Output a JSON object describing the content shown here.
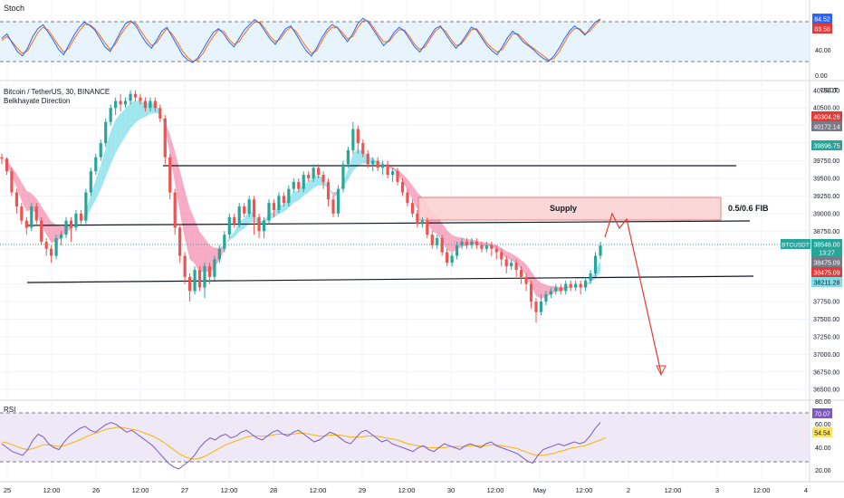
{
  "colors": {
    "up": "#26a69a",
    "down": "#ef5350",
    "grid": "#f0f3fa",
    "stoch_k": "#2962ff",
    "stoch_d": "#ff6d00",
    "rsi": "#7e57c2",
    "rsi_ma": "#f7b500",
    "band_fill": "#e3f2fd",
    "rsi_band": "#ede7f6",
    "cloud_bull": "#80deea",
    "cloud_bear": "#f48fb1",
    "supply_fill": "#fbd3d3",
    "supply_stroke": "#e57373",
    "projection": "#e53935",
    "sr_line": "#131722"
  },
  "stoch": {
    "title": "Stoch",
    "k_value": "84.52",
    "d_value": "83.58",
    "tick_80": "80.00",
    "tick_40": "40.00",
    "tick_0": "0.00"
  },
  "main": {
    "symbol_line": "Bitcoin / TetherUS, 30, BINANCE",
    "indicator_line": "Belkhayate Direction",
    "supply_label": "Supply",
    "fib_label": "0.5/0.6 FIB",
    "price_ticks": [
      "40750.00",
      "40500.00",
      "40250.00",
      "40000.00",
      "39750.00",
      "39500.00",
      "39250.00",
      "39000.00",
      "38750.00",
      "38500.00",
      "38250.00",
      "38000.00",
      "37750.00",
      "37500.00",
      "37250.00",
      "37000.00",
      "36750.00",
      "36500.00"
    ],
    "currency": "USDT",
    "badge_top1": "40304.26",
    "badge_top2": "40172.14",
    "badge_top3": "39896.75",
    "symbol_badge": "BTCUSDT",
    "last_price": "38546.00",
    "countdown": "13:27",
    "badge_low1": "38475.09",
    "badge_low2": "38475.09",
    "badge_low3": "38211.28"
  },
  "rsi": {
    "title": "RSI",
    "value": "70.07",
    "ma_value": "54.54",
    "tick_80": "80.00",
    "tick_60": "60.00",
    "tick_40": "40.00",
    "tick_20": "20.00"
  },
  "x_axis": {
    "labels": [
      "25",
      "12:00",
      "26",
      "12:00",
      "27",
      "12:00",
      "28",
      "12:00",
      "29",
      "12:00",
      "30",
      "12:00",
      "May",
      "12:00",
      "2",
      "12:00",
      "3",
      "12:00",
      "4"
    ]
  },
  "chart_data": {
    "type": "candlestick",
    "interval": "30",
    "ylim": [
      36400,
      40850
    ],
    "candles": [
      [
        39800,
        39780,
        39850,
        39700
      ],
      [
        39780,
        39600,
        39800,
        39550
      ],
      [
        39600,
        39300,
        39650,
        39250
      ],
      [
        39300,
        39100,
        39350,
        39000
      ],
      [
        39100,
        38900,
        39150,
        38850
      ],
      [
        38900,
        38800,
        38950,
        38700
      ],
      [
        38800,
        39100,
        39150,
        38750
      ],
      [
        39100,
        38900,
        39150,
        38850
      ],
      [
        38900,
        38600,
        38950,
        38550
      ],
      [
        38600,
        38500,
        38650,
        38400
      ],
      [
        38500,
        38400,
        38550,
        38300
      ],
      [
        38400,
        38650,
        38700,
        38350
      ],
      [
        38650,
        38700,
        38750,
        38550
      ],
      [
        38700,
        38900,
        38950,
        38650
      ],
      [
        38900,
        38800,
        38950,
        38600
      ],
      [
        38800,
        39000,
        39050,
        38750
      ],
      [
        39000,
        38900,
        39050,
        38850
      ],
      [
        38900,
        39300,
        39350,
        38850
      ],
      [
        39300,
        39600,
        39650,
        39250
      ],
      [
        39600,
        39800,
        39850,
        39550
      ],
      [
        39800,
        40000,
        40050,
        39750
      ],
      [
        40000,
        40300,
        40350,
        39950
      ],
      [
        40300,
        40500,
        40550,
        40250
      ],
      [
        40500,
        40600,
        40650,
        40400
      ],
      [
        40600,
        40550,
        40700,
        40450
      ],
      [
        40550,
        40600,
        40650,
        40500
      ],
      [
        40600,
        40700,
        40750,
        40550
      ],
      [
        40700,
        40650,
        40750,
        40600
      ],
      [
        40650,
        40600,
        40700,
        40550
      ],
      [
        40600,
        40500,
        40650,
        40450
      ],
      [
        40500,
        40600,
        40650,
        40450
      ],
      [
        40600,
        40500,
        40650,
        40450
      ],
      [
        40500,
        40350,
        40550,
        40300
      ],
      [
        40350,
        39800,
        40400,
        39700
      ],
      [
        39800,
        39300,
        39850,
        39200
      ],
      [
        39300,
        38800,
        39350,
        38700
      ],
      [
        38800,
        38400,
        38850,
        38300
      ],
      [
        38400,
        38100,
        38450,
        38000
      ],
      [
        38100,
        37900,
        38150,
        37750
      ],
      [
        37900,
        38200,
        38250,
        37850
      ],
      [
        38200,
        37950,
        38250,
        37900
      ],
      [
        37950,
        38250,
        38300,
        37800
      ],
      [
        38250,
        38100,
        38300,
        38000
      ],
      [
        38100,
        38350,
        38400,
        38050
      ],
      [
        38350,
        38500,
        38550,
        38300
      ],
      [
        38500,
        38700,
        38750,
        38450
      ],
      [
        38700,
        38950,
        39000,
        38650
      ],
      [
        38950,
        38850,
        39000,
        38800
      ],
      [
        38850,
        39100,
        39150,
        38800
      ],
      [
        39100,
        39000,
        39150,
        38950
      ],
      [
        39000,
        39200,
        39250,
        38950
      ],
      [
        39200,
        38950,
        39250,
        38700
      ],
      [
        38950,
        38750,
        39000,
        38650
      ],
      [
        38750,
        38900,
        38950,
        38650
      ],
      [
        38900,
        39150,
        39200,
        38850
      ],
      [
        39150,
        39050,
        39200,
        38950
      ],
      [
        39050,
        39250,
        39300,
        39000
      ],
      [
        39250,
        39150,
        39300,
        39100
      ],
      [
        39150,
        39350,
        39400,
        39100
      ],
      [
        39350,
        39450,
        39500,
        39300
      ],
      [
        39450,
        39350,
        39500,
        39300
      ],
      [
        39350,
        39550,
        39600,
        39300
      ],
      [
        39550,
        39500,
        39600,
        39450
      ],
      [
        39500,
        39650,
        39700,
        39450
      ],
      [
        39650,
        39550,
        39700,
        39500
      ],
      [
        39550,
        39450,
        39600,
        39350
      ],
      [
        39450,
        39200,
        39500,
        39100
      ],
      [
        39200,
        39000,
        39250,
        38950
      ],
      [
        39000,
        39350,
        39400,
        38950
      ],
      [
        39350,
        39700,
        39750,
        39300
      ],
      [
        39700,
        39900,
        39950,
        39650
      ],
      [
        39900,
        40200,
        40300,
        39850
      ],
      [
        40200,
        40000,
        40250,
        39850
      ],
      [
        40000,
        39850,
        40050,
        39800
      ],
      [
        39850,
        39700,
        39900,
        39650
      ],
      [
        39700,
        39750,
        39800,
        39600
      ],
      [
        39750,
        39650,
        39800,
        39600
      ],
      [
        39650,
        39700,
        39750,
        39550
      ],
      [
        39700,
        39550,
        39750,
        39500
      ],
      [
        39550,
        39600,
        39650,
        39450
      ],
      [
        39600,
        39450,
        39650,
        39400
      ],
      [
        39450,
        39300,
        39500,
        39250
      ],
      [
        39300,
        39150,
        39350,
        39100
      ],
      [
        39150,
        39000,
        39200,
        38950
      ],
      [
        39000,
        38850,
        39050,
        38800
      ],
      [
        38850,
        38900,
        38950,
        38800
      ],
      [
        38900,
        38700,
        38950,
        38650
      ],
      [
        38700,
        38550,
        38750,
        38500
      ],
      [
        38550,
        38650,
        38700,
        38500
      ],
      [
        38650,
        38450,
        38700,
        38400
      ],
      [
        38450,
        38300,
        38500,
        38250
      ],
      [
        38300,
        38400,
        38450,
        38250
      ],
      [
        38400,
        38550,
        38600,
        38350
      ],
      [
        38550,
        38600,
        38650,
        38500
      ],
      [
        38600,
        38550,
        38650,
        38500
      ],
      [
        38550,
        38600,
        38650,
        38500
      ],
      [
        38600,
        38550,
        38650,
        38500
      ],
      [
        38550,
        38500,
        38600,
        38450
      ],
      [
        38500,
        38550,
        38600,
        38450
      ],
      [
        38550,
        38500,
        38600,
        38400
      ],
      [
        38500,
        38450,
        38550,
        38350
      ],
      [
        38450,
        38350,
        38500,
        38250
      ],
      [
        38350,
        38250,
        38400,
        38150
      ],
      [
        38250,
        38300,
        38350,
        38200
      ],
      [
        38300,
        38200,
        38350,
        38100
      ],
      [
        38200,
        38100,
        38250,
        38000
      ],
      [
        38100,
        38000,
        38150,
        37900
      ],
      [
        38000,
        37750,
        38050,
        37650
      ],
      [
        37750,
        37600,
        37800,
        37450
      ],
      [
        37600,
        37750,
        37850,
        37550
      ],
      [
        37750,
        37850,
        37900,
        37700
      ],
      [
        37850,
        37900,
        37950,
        37800
      ],
      [
        37900,
        37950,
        38000,
        37850
      ],
      [
        37950,
        37900,
        38000,
        37850
      ],
      [
        37900,
        38000,
        38050,
        37850
      ],
      [
        38000,
        37950,
        38050,
        37900
      ],
      [
        37950,
        38000,
        38050,
        37900
      ],
      [
        38000,
        37950,
        38050,
        37850
      ],
      [
        37950,
        38050,
        38100,
        37900
      ],
      [
        38050,
        38150,
        38200,
        38000
      ],
      [
        38150,
        38400,
        38450,
        38100
      ],
      [
        38400,
        38546,
        38600,
        38350
      ]
    ],
    "levels": [
      39620,
      38860,
      38280
    ],
    "supply_zone": [
      38900,
      39180
    ],
    "stoch_k": [
      55,
      62,
      48,
      35,
      28,
      40,
      58,
      70,
      76,
      64,
      52,
      38,
      30,
      45,
      60,
      72,
      80,
      75,
      68,
      55,
      42,
      35,
      50,
      65,
      78,
      82,
      74,
      60,
      48,
      40,
      52,
      66,
      72,
      58,
      44,
      30,
      22,
      18,
      25,
      38,
      52,
      64,
      70,
      62,
      50,
      42,
      55,
      68,
      76,
      84,
      78,
      66,
      54,
      46,
      58,
      70,
      74,
      62,
      48,
      36,
      28,
      40,
      56,
      68,
      76,
      72,
      60,
      50,
      62,
      78,
      86,
      80,
      68,
      56,
      44,
      52,
      64,
      72,
      66,
      54,
      42,
      34,
      46,
      58,
      70,
      74,
      62,
      50,
      40,
      48,
      60,
      72,
      68,
      56,
      44,
      36,
      30,
      42,
      56,
      66,
      60,
      50,
      44,
      38,
      30,
      24,
      20,
      28,
      40,
      54,
      66,
      74,
      68,
      60,
      70,
      80,
      84.52
    ],
    "stoch_d": [
      52,
      58,
      50,
      40,
      32,
      36,
      50,
      64,
      72,
      68,
      56,
      44,
      34,
      40,
      54,
      66,
      76,
      76,
      70,
      60,
      48,
      38,
      46,
      60,
      72,
      80,
      78,
      66,
      54,
      44,
      48,
      60,
      70,
      62,
      50,
      36,
      26,
      20,
      22,
      32,
      46,
      58,
      68,
      66,
      54,
      46,
      50,
      62,
      72,
      80,
      80,
      70,
      58,
      50,
      54,
      66,
      72,
      66,
      54,
      42,
      32,
      36,
      50,
      64,
      72,
      72,
      64,
      54,
      58,
      72,
      82,
      82,
      72,
      60,
      50,
      50,
      60,
      68,
      68,
      58,
      46,
      38,
      42,
      54,
      66,
      72,
      66,
      54,
      44,
      46,
      56,
      68,
      70,
      60,
      48,
      40,
      34,
      38,
      50,
      62,
      62,
      54,
      46,
      40,
      34,
      28,
      22,
      24,
      34,
      48,
      62,
      70,
      70,
      62,
      66,
      76,
      83.58
    ],
    "rsi": [
      48,
      44,
      40,
      38,
      36,
      42,
      52,
      58,
      55,
      48,
      44,
      42,
      50,
      56,
      60,
      64,
      66,
      62,
      60,
      64,
      68,
      70,
      68,
      64,
      60,
      62,
      58,
      54,
      50,
      46,
      40,
      34,
      28,
      24,
      22,
      26,
      30,
      36,
      44,
      50,
      54,
      52,
      56,
      58,
      54,
      56,
      60,
      62,
      58,
      54,
      52,
      56,
      60,
      62,
      58,
      56,
      60,
      62,
      58,
      54,
      50,
      52,
      56,
      60,
      58,
      54,
      50,
      48,
      54,
      60,
      62,
      58,
      54,
      50,
      52,
      48,
      46,
      44,
      42,
      40,
      44,
      46,
      42,
      40,
      44,
      48,
      46,
      44,
      42,
      46,
      48,
      46,
      44,
      48,
      50,
      46,
      44,
      42,
      40,
      38,
      34,
      30,
      28,
      36,
      42,
      44,
      46,
      48,
      46,
      48,
      50,
      48,
      50,
      56,
      64,
      70.07
    ],
    "rsi_ma": [
      50,
      49,
      47,
      45,
      43,
      42,
      43,
      45,
      47,
      47,
      46,
      45,
      46,
      48,
      50,
      52,
      55,
      57,
      59,
      61,
      63,
      64,
      65,
      65,
      64,
      63,
      62,
      60,
      58,
      56,
      53,
      50,
      46,
      42,
      38,
      35,
      33,
      32,
      33,
      35,
      38,
      41,
      44,
      47,
      49,
      51,
      53,
      55,
      56,
      56,
      56,
      56,
      57,
      58,
      58,
      58,
      58,
      59,
      59,
      58,
      57,
      56,
      56,
      57,
      57,
      57,
      56,
      55,
      55,
      55,
      56,
      56,
      56,
      55,
      54,
      53,
      52,
      50,
      48,
      47,
      46,
      45,
      44,
      44,
      44,
      44,
      45,
      45,
      45,
      45,
      46,
      46,
      46,
      46,
      47,
      47,
      46,
      45,
      44,
      43,
      41,
      39,
      37,
      36,
      36,
      37,
      38,
      40,
      41,
      43,
      44,
      45,
      46,
      48,
      50,
      52,
      54.54
    ]
  }
}
